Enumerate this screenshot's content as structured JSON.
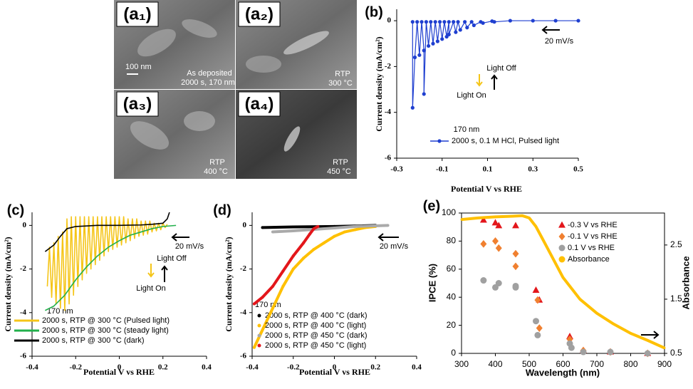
{
  "images": [
    {
      "label": "(a₁)",
      "texts": [
        "100 nm",
        "As deposited",
        "2000 s, 170 nm"
      ]
    },
    {
      "label": "(a₂)",
      "texts": [
        "RTP",
        "300 °C"
      ]
    },
    {
      "label": "(a₃)",
      "texts": [
        "RTP",
        "400 °C"
      ]
    },
    {
      "label": "(a₄)",
      "texts": [
        "RTP",
        "450 °C"
      ]
    }
  ],
  "chart_data": [
    {
      "type": "line",
      "title": "(b)",
      "xlabel": "Potential V vs RHE",
      "ylabel": "Current  density (mA/cm²)",
      "xlim": [
        -0.3,
        0.5
      ],
      "xticks": [
        -0.3,
        -0.1,
        0.1,
        0.3,
        0.5
      ],
      "ylim": [
        -6,
        0.5
      ],
      "yticks": [
        0,
        -2,
        -4,
        -6
      ],
      "annotations": [
        "20 mV/s",
        "Light Off",
        "Light On",
        "170 nm"
      ],
      "series": [
        {
          "name": "2000 s, 0.1 M HCl, Pulsed light",
          "color": "#1f3fd0",
          "line": true,
          "marker": "circle",
          "x": [
            -0.23,
            -0.23,
            -0.22,
            -0.21,
            -0.2,
            -0.19,
            -0.18,
            -0.18,
            -0.17,
            -0.16,
            -0.15,
            -0.14,
            -0.13,
            -0.12,
            -0.11,
            -0.1,
            -0.09,
            -0.08,
            -0.07,
            -0.07,
            -0.05,
            -0.04,
            -0.03,
            -0.02,
            0,
            0.01,
            0.03,
            0.04,
            0.07,
            0.08,
            0.12,
            0.13,
            0.2,
            0.3,
            0.4,
            0.5
          ],
          "values": [
            -0.05,
            -3.8,
            -1.6,
            -0.05,
            -1.5,
            -0.05,
            -1.3,
            -3.2,
            -0.05,
            -1.1,
            -0.05,
            -1.0,
            -0.05,
            -0.9,
            -0.05,
            -0.8,
            -0.05,
            -0.7,
            -0.05,
            -0.6,
            -0.05,
            -0.5,
            -0.05,
            -0.4,
            -0.05,
            -0.3,
            -0.05,
            -0.2,
            -0.05,
            -0.1,
            -0.02,
            -0.05,
            0,
            0,
            0,
            0
          ]
        }
      ]
    },
    {
      "type": "line",
      "title": "(c)",
      "xlabel": "Potential V vs RHE",
      "ylabel": "Current  density (mA/cm²)",
      "xlim": [
        -0.4,
        0.4
      ],
      "xticks": [
        -0.4,
        -0.2,
        0,
        0.2,
        0.4
      ],
      "ylim": [
        -6,
        0.6
      ],
      "yticks": [
        0,
        -2,
        -4,
        -6
      ],
      "annotations": [
        "20 mV/s",
        "Light Off",
        "Light On",
        "170 nm"
      ],
      "series": [
        {
          "name": "2000 s, RTP @ 300 °C (Pulsed light)",
          "color": "#f5c518",
          "line": true,
          "x": [
            -0.33,
            -0.32,
            -0.31,
            -0.3,
            -0.29,
            -0.28,
            -0.27,
            -0.26,
            -0.25,
            -0.24,
            -0.23,
            -0.22,
            -0.21,
            -0.2,
            -0.19,
            -0.18,
            -0.17,
            -0.16,
            -0.15,
            -0.14,
            -0.13,
            -0.12,
            -0.11,
            -0.1,
            -0.09,
            -0.08,
            -0.07,
            -0.06,
            -0.05,
            -0.04,
            -0.03,
            -0.02,
            -0.01,
            0,
            0.01,
            0.02,
            0.03,
            0.04,
            0.05,
            0.06,
            0.07,
            0.08,
            0.09,
            0.1,
            0.11,
            0.12,
            0.13,
            0.14,
            0.15,
            0.16,
            0.17,
            0.18,
            0.19,
            0.2,
            0.21,
            0.22
          ],
          "values": [
            -2.8,
            -1.0,
            -3.3,
            -0.8,
            -3.6,
            -0.5,
            -3.8,
            -0.3,
            -3.9,
            0.3,
            -3.6,
            0.4,
            -3.2,
            0.4,
            -2.8,
            0.4,
            -2.5,
            0.4,
            -2.2,
            0.4,
            -2.0,
            0.4,
            -1.8,
            0.4,
            -1.6,
            0.4,
            -1.4,
            0.4,
            -1.2,
            0.4,
            -1.1,
            0.4,
            -1.0,
            0.4,
            -0.9,
            0.4,
            -0.8,
            0.3,
            -0.7,
            0.3,
            -0.6,
            0.3,
            -0.5,
            0.2,
            -0.45,
            0.2,
            -0.4,
            0.2,
            -0.3,
            0.1,
            -0.25,
            0.1,
            -0.2,
            0.1,
            -0.1,
            0.05
          ]
        },
        {
          "name": "2000 s, RTP @ 300 °C (steady light)",
          "color": "#22b04b",
          "line": true,
          "x": [
            -0.34,
            -0.3,
            -0.25,
            -0.2,
            -0.15,
            -0.1,
            -0.05,
            0,
            0.05,
            0.1,
            0.15,
            0.2,
            0.26
          ],
          "values": [
            -3.9,
            -3.7,
            -3.2,
            -2.5,
            -1.9,
            -1.4,
            -1.0,
            -0.7,
            -0.45,
            -0.3,
            -0.15,
            -0.05,
            0
          ]
        },
        {
          "name": "2000 s, RTP @ 300 °C (dark)",
          "color": "#000000",
          "line": true,
          "x": [
            -0.34,
            -0.3,
            -0.27,
            -0.24,
            -0.2,
            -0.1,
            0,
            0.1,
            0.15,
            0.2,
            0.22,
            0.23
          ],
          "values": [
            -1.2,
            -0.9,
            -0.5,
            -0.15,
            -0.05,
            0,
            0,
            0.02,
            0.05,
            0.1,
            0.3,
            0.6
          ]
        }
      ]
    },
    {
      "type": "line",
      "title": "(d)",
      "xlabel": "Potential V vs RHE",
      "ylabel": "Current  density (mA/cm²)",
      "xlim": [
        -0.4,
        0.4
      ],
      "xticks": [
        -0.4,
        -0.2,
        0,
        0.2,
        0.4
      ],
      "ylim": [
        -6,
        0.6
      ],
      "yticks": [
        0,
        -2,
        -4,
        -6
      ],
      "annotations": [
        "20 mV/s",
        "170 nm"
      ],
      "series": [
        {
          "name": "2000 s, RTP @ 400 °C (dark)",
          "color": "#000000",
          "line": true,
          "marker": "circle",
          "x": [
            -0.35,
            -0.2,
            0,
            0.1,
            0.2
          ],
          "values": [
            -0.1,
            -0.07,
            -0.05,
            -0.03,
            0
          ]
        },
        {
          "name": "2000 s, RTP @ 400 °C (light)",
          "color": "#ffc000",
          "line": true,
          "marker": "circle",
          "x": [
            -0.39,
            -0.35,
            -0.3,
            -0.25,
            -0.2,
            -0.15,
            -0.1,
            -0.05,
            0,
            0.05,
            0.1,
            0.15,
            0.2
          ],
          "values": [
            -5.6,
            -4.8,
            -3.8,
            -2.8,
            -2.0,
            -1.5,
            -1.1,
            -0.8,
            -0.5,
            -0.3,
            -0.2,
            -0.1,
            -0.05
          ]
        },
        {
          "name": "2000 s, RTP @ 450 °C (dark)",
          "color": "#aaaaaa",
          "line": true,
          "marker": "circle",
          "x": [
            -0.3,
            -0.2,
            0,
            0.1,
            0.26
          ],
          "values": [
            -0.3,
            -0.25,
            -0.12,
            -0.05,
            0
          ]
        },
        {
          "name": "2000 s, RTP @ 450 °C (light)",
          "color": "#e3161b",
          "line": true,
          "marker": "circle",
          "x": [
            -0.39,
            -0.35,
            -0.3,
            -0.25,
            -0.2,
            -0.15,
            -0.12,
            -0.1,
            -0.08
          ],
          "values": [
            -3.6,
            -3.3,
            -2.8,
            -2.1,
            -1.4,
            -0.8,
            -0.4,
            -0.15,
            -0.05
          ]
        }
      ]
    },
    {
      "type": "scatter",
      "title": "(e)",
      "xlabel": "Wavelength (nm)",
      "ylabel": "IPCE (%)",
      "y2label": "Absorbance",
      "xlim": [
        300,
        900
      ],
      "xticks": [
        300,
        400,
        500,
        600,
        700,
        800,
        900
      ],
      "ylim": [
        0,
        100
      ],
      "yticks": [
        0,
        20,
        40,
        60,
        80,
        100
      ],
      "y2lim": [
        0.5,
        3.09
      ],
      "y2ticks": [
        0.5,
        1.5,
        2.5
      ],
      "box": true,
      "series": [
        {
          "name": "-0.3 V vs RHE",
          "color": "#e3161b",
          "line": false,
          "marker": "triangle",
          "x": [
            365,
            400,
            410,
            460,
            520,
            530,
            620,
            660,
            740,
            850
          ],
          "values": [
            95,
            93,
            91,
            91,
            45,
            38,
            12,
            2,
            1,
            0
          ]
        },
        {
          "name": "-0.1 V vs RHE",
          "color": "#f08030",
          "line": false,
          "marker": "diamond",
          "x": [
            365,
            400,
            410,
            460,
            460,
            525,
            530,
            620,
            660,
            740,
            850
          ],
          "values": [
            78,
            80,
            75,
            71,
            62,
            38,
            18,
            10,
            2,
            1,
            0
          ]
        },
        {
          "name": "0.1 V vs RHE",
          "color": "#a0a0a0",
          "line": false,
          "marker": "circle",
          "x": [
            365,
            400,
            410,
            460,
            460,
            520,
            525,
            620,
            625,
            660,
            740,
            850
          ],
          "values": [
            52,
            47,
            50,
            48,
            47,
            23,
            13,
            7,
            4,
            1,
            1,
            0
          ]
        },
        {
          "name": "Absorbance",
          "color": "#ffc000",
          "line": true,
          "marker": "circle",
          "axis": "y2",
          "x": [
            300,
            350,
            400,
            450,
            480,
            500,
            520,
            550,
            600,
            650,
            700,
            750,
            800,
            850,
            900
          ],
          "values": [
            2.97,
            3.0,
            3.02,
            3.03,
            3.04,
            3.0,
            2.84,
            2.49,
            1.9,
            1.5,
            1.24,
            1.04,
            0.87,
            0.74,
            0.6
          ]
        }
      ]
    }
  ]
}
